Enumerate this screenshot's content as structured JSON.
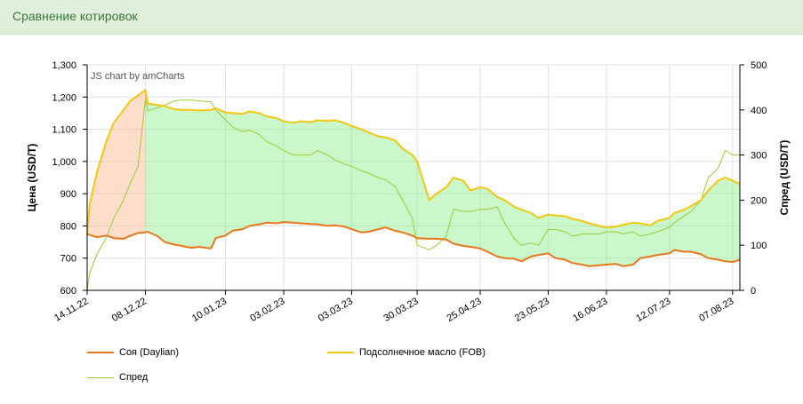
{
  "header": {
    "title": "Сравнение котировок"
  },
  "credit": "JS chart by amCharts",
  "legend": [
    {
      "label": "Соя (Daylian)",
      "color": "#e8781e"
    },
    {
      "label": "Подсолнечное масло (FOB)",
      "color": "#f2c811"
    },
    {
      "label": "Спред",
      "color": "#9acd32"
    }
  ],
  "chart_data": {
    "type": "line",
    "ylabel_left": "Цена (USD/T)",
    "ylabel_right": "Спред (USD/T)",
    "y_left_range": [
      600,
      1300
    ],
    "y_right_range": [
      0,
      500
    ],
    "y_left_ticks": [
      "600",
      "700",
      "800",
      "900",
      "1,000",
      "1,100",
      "1,200",
      "1,300"
    ],
    "y_right_ticks": [
      "0",
      "100",
      "200",
      "300",
      "400",
      "500"
    ],
    "x_ticks": [
      "14.11.22",
      "08.12.22",
      "10.01.23",
      "03.02.23",
      "03.03.23",
      "30.03.23",
      "25.04.23",
      "23.05.23",
      "16.06.23",
      "12.07.23",
      "07.08.23"
    ],
    "x_dates": [
      "2022-11-14",
      "2022-11-15",
      "2022-11-18",
      "2022-11-22",
      "2022-11-25",
      "2022-11-29",
      "2022-12-02",
      "2022-12-05",
      "2022-12-08",
      "2022-12-09",
      "2022-12-13",
      "2022-12-16",
      "2022-12-20",
      "2022-12-23",
      "2022-12-27",
      "2022-12-30",
      "2023-01-04",
      "2023-01-06",
      "2023-01-10",
      "2023-01-13",
      "2023-01-17",
      "2023-01-20",
      "2023-01-24",
      "2023-01-27",
      "2023-01-31",
      "2023-02-03",
      "2023-02-07",
      "2023-02-10",
      "2023-02-14",
      "2023-02-17",
      "2023-02-21",
      "2023-02-24",
      "2023-02-28",
      "2023-03-03",
      "2023-03-07",
      "2023-03-10",
      "2023-03-14",
      "2023-03-17",
      "2023-03-21",
      "2023-03-24",
      "2023-03-28",
      "2023-03-30",
      "2023-04-04",
      "2023-04-07",
      "2023-04-11",
      "2023-04-14",
      "2023-04-18",
      "2023-04-21",
      "2023-04-25",
      "2023-04-28",
      "2023-05-02",
      "2023-05-05",
      "2023-05-09",
      "2023-05-12",
      "2023-05-16",
      "2023-05-19",
      "2023-05-23",
      "2023-05-26",
      "2023-05-30",
      "2023-06-02",
      "2023-06-06",
      "2023-06-09",
      "2023-06-13",
      "2023-06-16",
      "2023-06-20",
      "2023-06-23",
      "2023-06-27",
      "2023-06-30",
      "2023-07-04",
      "2023-07-07",
      "2023-07-12",
      "2023-07-14",
      "2023-07-18",
      "2023-07-21",
      "2023-07-25",
      "2023-07-28",
      "2023-08-01",
      "2023-08-04",
      "2023-08-07",
      "2023-08-10"
    ],
    "series": [
      {
        "name": "Соя (Daylian)",
        "values": [
          775,
          772,
          765,
          770,
          762,
          760,
          770,
          778,
          780,
          782,
          768,
          750,
          742,
          738,
          732,
          735,
          730,
          762,
          770,
          785,
          790,
          800,
          805,
          810,
          808,
          812,
          810,
          808,
          806,
          805,
          800,
          802,
          798,
          790,
          780,
          782,
          790,
          795,
          785,
          780,
          770,
          762,
          760,
          760,
          758,
          745,
          738,
          735,
          730,
          720,
          705,
          700,
          698,
          690,
          705,
          710,
          715,
          700,
          695,
          685,
          680,
          675,
          678,
          680,
          682,
          675,
          680,
          700,
          705,
          710,
          715,
          725,
          720,
          720,
          712,
          700,
          695,
          690,
          688,
          695
        ]
      },
      {
        "name": "Подсолнечное масло (FOB)",
        "values": [
          775,
          865,
          965,
          1065,
          1120,
          1160,
          1190,
          1205,
          1222,
          1180,
          1175,
          1172,
          1162,
          1160,
          1160,
          1158,
          1160,
          1165,
          1152,
          1150,
          1148,
          1155,
          1150,
          1140,
          1135,
          1125,
          1120,
          1125,
          1122,
          1128,
          1126,
          1128,
          1120,
          1110,
          1100,
          1090,
          1078,
          1075,
          1065,
          1040,
          1020,
          1000,
          880,
          900,
          920,
          950,
          940,
          910,
          920,
          915,
          890,
          880,
          860,
          850,
          840,
          825,
          835,
          832,
          830,
          822,
          815,
          808,
          800,
          795,
          798,
          804,
          810,
          808,
          802,
          815,
          825,
          840,
          850,
          862,
          880,
          910,
          940,
          950,
          940,
          930
        ]
      },
      {
        "name": "Спред",
        "values": [
          0,
          37,
          80,
          118,
          160,
          200,
          240,
          275,
          425,
          398,
          405,
          410,
          420,
          422,
          422,
          420,
          418,
          400,
          378,
          362,
          352,
          355,
          345,
          330,
          320,
          310,
          300,
          300,
          300,
          310,
          300,
          290,
          280,
          275,
          265,
          260,
          250,
          245,
          230,
          200,
          160,
          100,
          90,
          100,
          120,
          180,
          175,
          175,
          180,
          180,
          185,
          150,
          115,
          100,
          105,
          100,
          135,
          135,
          130,
          120,
          125,
          125,
          125,
          130,
          130,
          125,
          130,
          120,
          125,
          130,
          140,
          150,
          165,
          175,
          200,
          250,
          270,
          310,
          300,
          300
        ]
      }
    ],
    "legend_position": "bottom",
    "grid": true
  }
}
